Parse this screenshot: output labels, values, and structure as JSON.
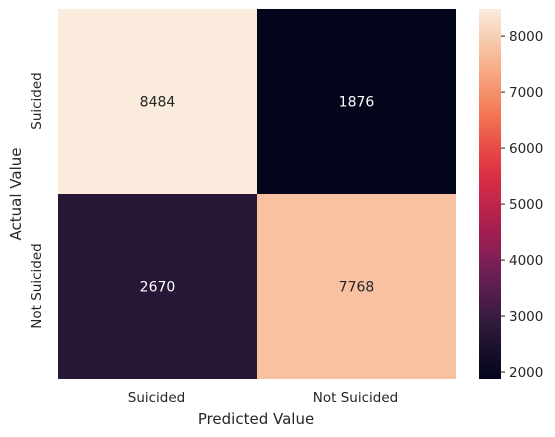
{
  "chart_data": {
    "type": "heatmap",
    "title": "",
    "xlabel": "Predicted Value",
    "ylabel": "Actual Value",
    "x_categories": [
      "Suicided",
      "Not Suicided"
    ],
    "y_categories": [
      "Suicided",
      "Not Suicided"
    ],
    "values": [
      [
        8484,
        1876
      ],
      [
        2670,
        7768
      ]
    ],
    "cell_labels": [
      [
        "8484",
        "1876"
      ],
      [
        "2670",
        "7768"
      ]
    ],
    "colorbar": {
      "min": 1876,
      "max": 8484,
      "ticks": [
        2000,
        3000,
        4000,
        5000,
        6000,
        7000,
        8000
      ],
      "tick_labels": [
        "2000",
        "3000",
        "4000",
        "5000",
        "6000",
        "7000",
        "8000"
      ]
    },
    "colormap": "rocket",
    "colors": {
      "stops": [
        "#03051a",
        "#2c1a3a",
        "#6e1f57",
        "#b01f4e",
        "#e13342",
        "#f37651",
        "#f6b48f",
        "#faebdd"
      ],
      "cell_text_dark_bg": "#ffffff",
      "cell_text_light_bg": "#262626"
    },
    "grid": false,
    "legend": "colorbar-right"
  }
}
